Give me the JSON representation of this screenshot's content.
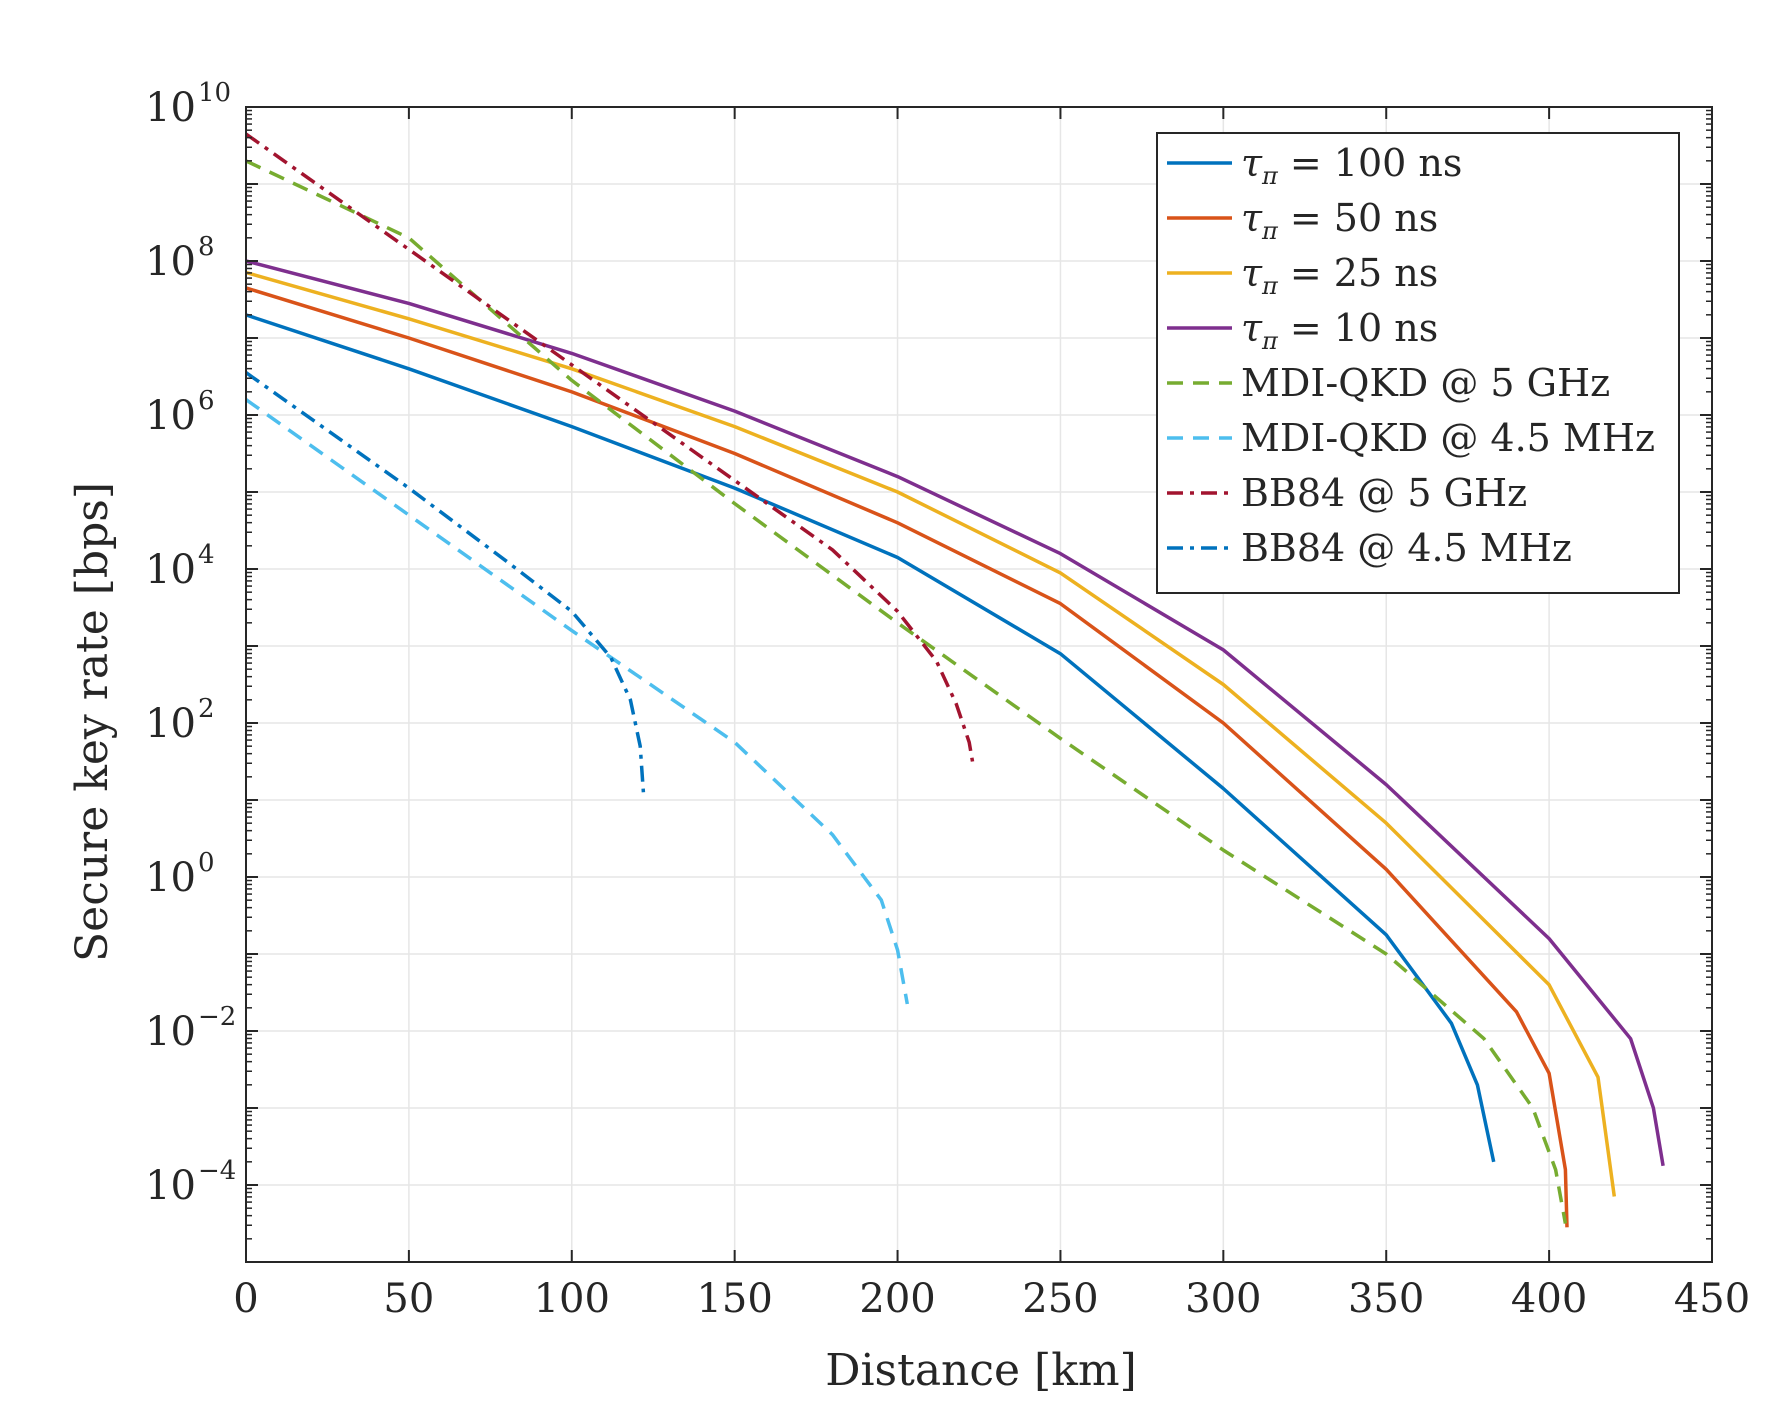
{
  "chart_data": {
    "type": "line",
    "title": "",
    "xlabel": "Distance [km]",
    "ylabel": "Secure key rate [bps]",
    "xlim": [
      0,
      450
    ],
    "ylim_log10": [
      -5,
      10
    ],
    "yscale": "log",
    "grid": true,
    "legend_position": "top-right",
    "x_ticks": [
      {
        "value": 0,
        "label": "0"
      },
      {
        "value": 50,
        "label": "50"
      },
      {
        "value": 100,
        "label": "100"
      },
      {
        "value": 150,
        "label": "150"
      },
      {
        "value": 200,
        "label": "200"
      },
      {
        "value": 250,
        "label": "250"
      },
      {
        "value": 300,
        "label": "300"
      },
      {
        "value": 350,
        "label": "350"
      },
      {
        "value": 400,
        "label": "400"
      },
      {
        "value": 450,
        "label": "450"
      }
    ],
    "y_ticks": [
      {
        "exp": 10,
        "base": "10",
        "label": "10"
      },
      {
        "exp": 8,
        "base": "10",
        "label": "8"
      },
      {
        "exp": 6,
        "base": "10",
        "label": "6"
      },
      {
        "exp": 4,
        "base": "10",
        "label": "4"
      },
      {
        "exp": 2,
        "base": "10",
        "label": "2"
      },
      {
        "exp": 0,
        "base": "10",
        "label": "0"
      },
      {
        "exp": -2,
        "base": "10",
        "label": "−2"
      },
      {
        "exp": -4,
        "base": "10",
        "label": "−4"
      }
    ],
    "series": [
      {
        "name": "τπ = 100 ns",
        "legend_prefix": "τ",
        "legend_sub": "π",
        "legend_rest": " = 100 ns",
        "color": "#0072BD",
        "dash": "solid",
        "points": [
          [
            0,
            7.3
          ],
          [
            50,
            6.6
          ],
          [
            100,
            5.85
          ],
          [
            150,
            5.05
          ],
          [
            200,
            4.15
          ],
          [
            250,
            2.9
          ],
          [
            300,
            1.15
          ],
          [
            350,
            -0.75
          ],
          [
            370,
            -1.9
          ],
          [
            378,
            -2.7
          ],
          [
            383,
            -3.7
          ]
        ]
      },
      {
        "name": "τπ = 50 ns",
        "legend_prefix": "τ",
        "legend_sub": "π",
        "legend_rest": " = 50 ns",
        "color": "#D95319",
        "dash": "solid",
        "points": [
          [
            0,
            7.65
          ],
          [
            50,
            7.0
          ],
          [
            100,
            6.3
          ],
          [
            150,
            5.5
          ],
          [
            200,
            4.6
          ],
          [
            250,
            3.55
          ],
          [
            300,
            2.0
          ],
          [
            350,
            0.1
          ],
          [
            390,
            -1.75
          ],
          [
            400,
            -2.55
          ],
          [
            405,
            -3.8
          ],
          [
            405.5,
            -4.55
          ]
        ]
      },
      {
        "name": "τπ = 25 ns",
        "legend_prefix": "τ",
        "legend_sub": "π",
        "legend_rest": " = 25 ns",
        "color": "#EDB120",
        "dash": "solid",
        "points": [
          [
            0,
            7.85
          ],
          [
            50,
            7.25
          ],
          [
            100,
            6.6
          ],
          [
            150,
            5.85
          ],
          [
            200,
            5.0
          ],
          [
            250,
            3.95
          ],
          [
            300,
            2.5
          ],
          [
            350,
            0.7
          ],
          [
            400,
            -1.4
          ],
          [
            415,
            -2.6
          ],
          [
            420,
            -4.15
          ]
        ]
      },
      {
        "name": "τπ = 10 ns",
        "legend_prefix": "τ",
        "legend_sub": "π",
        "legend_rest": " = 10 ns",
        "color": "#7E2F8E",
        "dash": "solid",
        "points": [
          [
            0,
            8.0
          ],
          [
            50,
            7.45
          ],
          [
            100,
            6.8
          ],
          [
            150,
            6.05
          ],
          [
            200,
            5.2
          ],
          [
            250,
            4.2
          ],
          [
            300,
            2.95
          ],
          [
            350,
            1.2
          ],
          [
            400,
            -0.8
          ],
          [
            425,
            -2.1
          ],
          [
            432,
            -3.0
          ],
          [
            435,
            -3.75
          ]
        ]
      },
      {
        "name": "MDI-QKD @ 5 GHz",
        "legend_prefix": "",
        "legend_sub": "",
        "legend_rest": "MDI-QKD @ 5 GHz",
        "color": "#77AC30",
        "dash": "dashed",
        "points": [
          [
            0,
            9.3
          ],
          [
            50,
            8.3
          ],
          [
            100,
            6.45
          ],
          [
            150,
            4.85
          ],
          [
            200,
            3.3
          ],
          [
            250,
            1.8
          ],
          [
            300,
            0.35
          ],
          [
            350,
            -1.0
          ],
          [
            380,
            -2.1
          ],
          [
            395,
            -3.0
          ],
          [
            402,
            -3.8
          ],
          [
            405,
            -4.5
          ]
        ]
      },
      {
        "name": "MDI-QKD @ 4.5 MHz",
        "legend_prefix": "",
        "legend_sub": "",
        "legend_rest": "MDI-QKD @ 4.5 MHz",
        "color": "#4DBEEE",
        "dash": "dashed",
        "points": [
          [
            0,
            6.2
          ],
          [
            50,
            4.7
          ],
          [
            100,
            3.2
          ],
          [
            150,
            1.75
          ],
          [
            180,
            0.55
          ],
          [
            195,
            -0.3
          ],
          [
            200,
            -0.95
          ],
          [
            203,
            -1.65
          ]
        ]
      },
      {
        "name": "BB84 @ 5 GHz",
        "legend_prefix": "",
        "legend_sub": "",
        "legend_rest": "BB84 @ 5 GHz",
        "color": "#A2142F",
        "dash": "dashdot",
        "points": [
          [
            0,
            9.65
          ],
          [
            50,
            8.15
          ],
          [
            100,
            6.65
          ],
          [
            150,
            5.15
          ],
          [
            180,
            4.25
          ],
          [
            200,
            3.45
          ],
          [
            212,
            2.8
          ],
          [
            218,
            2.25
          ],
          [
            222,
            1.75
          ],
          [
            223,
            1.5
          ]
        ]
      },
      {
        "name": "BB84 @ 4.5 MHz",
        "legend_prefix": "",
        "legend_sub": "",
        "legend_rest": "BB84 @ 4.5 MHz",
        "color": "#0072BD",
        "dash": "dashdot",
        "points": [
          [
            0,
            6.55
          ],
          [
            50,
            5.05
          ],
          [
            80,
            4.1
          ],
          [
            100,
            3.45
          ],
          [
            112,
            2.85
          ],
          [
            118,
            2.3
          ],
          [
            121,
            1.7
          ],
          [
            122,
            1.1
          ]
        ]
      }
    ]
  }
}
